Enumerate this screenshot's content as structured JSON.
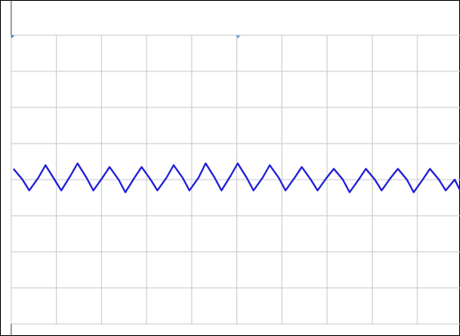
{
  "chart_data": {
    "type": "line",
    "x": [
      0.05,
      0.25,
      0.4,
      0.6,
      0.76,
      0.96,
      1.11,
      1.31,
      1.47,
      1.67,
      1.82,
      2.02,
      2.18,
      2.38,
      2.53,
      2.73,
      2.89,
      3.09,
      3.24,
      3.44,
      3.6,
      3.8,
      3.95,
      4.15,
      4.31,
      4.51,
      4.66,
      4.86,
      5.02,
      5.22,
      5.37,
      5.57,
      5.73,
      5.93,
      6.08,
      6.28,
      6.44,
      6.64,
      6.79,
      6.99,
      7.15,
      7.35,
      7.5,
      7.7,
      7.86,
      8.06,
      8.21,
      8.41,
      8.57,
      8.77,
      8.92,
      9.12,
      9.28,
      9.48,
      9.63,
      9.83,
      9.95
    ],
    "values": [
      0.3,
      0.0,
      -0.3,
      0.05,
      0.4,
      0.0,
      -0.3,
      0.1,
      0.45,
      0.05,
      -0.3,
      0.05,
      0.35,
      0.0,
      -0.35,
      0.05,
      0.35,
      0.0,
      -0.3,
      0.05,
      0.4,
      0.05,
      -0.3,
      0.05,
      0.45,
      0.05,
      -0.3,
      0.1,
      0.45,
      0.05,
      -0.3,
      0.05,
      0.4,
      0.05,
      -0.3,
      0.05,
      0.35,
      0.0,
      -0.3,
      0.05,
      0.3,
      0.0,
      -0.35,
      0.0,
      0.3,
      0.0,
      -0.3,
      0.05,
      0.3,
      0.0,
      -0.35,
      0.0,
      0.3,
      0.0,
      -0.3,
      0.0,
      -0.3
    ],
    "color": "#1f1fd6",
    "xlim": [
      0,
      10
    ],
    "ylim": [
      -4,
      4
    ],
    "xticks": [
      0,
      1,
      2,
      3,
      4,
      5,
      6,
      7,
      8,
      9,
      10
    ],
    "yticks": [
      -4,
      -3,
      -2,
      -1,
      0,
      1,
      2,
      3,
      4
    ],
    "grid": true
  }
}
